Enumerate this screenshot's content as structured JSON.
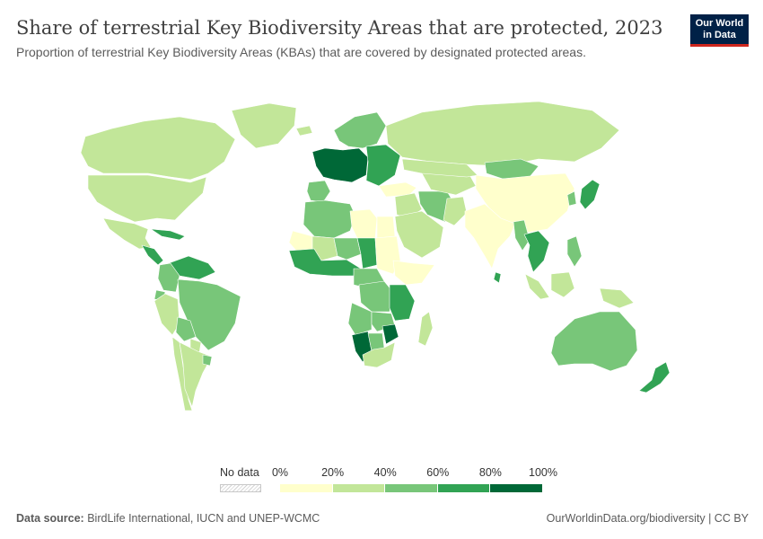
{
  "header": {
    "title": "Share of terrestrial Key Biodiversity Areas that are protected, 2023",
    "subtitle": "Proportion of terrestrial Key Biodiversity Areas (KBAs) that are covered by designated protected areas."
  },
  "logo": {
    "line1": "Our World",
    "line2": "in Data",
    "bg": "#002147",
    "accent": "#ce261e"
  },
  "legend": {
    "no_data_label": "No data",
    "ticks": [
      "0%",
      "20%",
      "40%",
      "60%",
      "80%",
      "100%"
    ],
    "bins": [
      {
        "from": 0,
        "to": 20,
        "color": "#ffffcc"
      },
      {
        "from": 20,
        "to": 40,
        "color": "#c2e699"
      },
      {
        "from": 40,
        "to": 60,
        "color": "#78c679"
      },
      {
        "from": 60,
        "to": 80,
        "color": "#31a354"
      },
      {
        "from": 80,
        "to": 100,
        "color": "#006837"
      }
    ],
    "no_data_color": "#e0e0e0"
  },
  "footer": {
    "source_label": "Data source:",
    "source_text": "BirdLife International, IUCN and UNEP-WCMC",
    "right_text": "OurWorldinData.org/biodiversity | CC BY"
  },
  "regions": [
    {
      "name": "Canada",
      "color": "#c2e699"
    },
    {
      "name": "Greenland",
      "color": "#c2e699"
    },
    {
      "name": "United States",
      "color": "#c2e699"
    },
    {
      "name": "Mexico",
      "color": "#c2e699"
    },
    {
      "name": "Central America",
      "color": "#31a354"
    },
    {
      "name": "Caribbean",
      "color": "#31a354"
    },
    {
      "name": "Venezuela and Guianas",
      "color": "#31a354"
    },
    {
      "name": "Colombia",
      "color": "#78c679"
    },
    {
      "name": "Ecuador",
      "color": "#78c679"
    },
    {
      "name": "Peru",
      "color": "#c2e699"
    },
    {
      "name": "Brazil",
      "color": "#78c679"
    },
    {
      "name": "Bolivia",
      "color": "#78c679"
    },
    {
      "name": "Paraguay",
      "color": "#c2e699"
    },
    {
      "name": "Chile",
      "color": "#c2e699"
    },
    {
      "name": "Argentina",
      "color": "#c2e699"
    },
    {
      "name": "Uruguay",
      "color": "#78c679"
    },
    {
      "name": "Iceland",
      "color": "#c2e699"
    },
    {
      "name": "Western Europe",
      "color": "#006837"
    },
    {
      "name": "Iberia",
      "color": "#78c679"
    },
    {
      "name": "Scandinavia",
      "color": "#78c679"
    },
    {
      "name": "Eastern Europe",
      "color": "#31a354"
    },
    {
      "name": "Russia",
      "color": "#c2e699"
    },
    {
      "name": "North Africa west",
      "color": "#78c679"
    },
    {
      "name": "Libya",
      "color": "#ffffcc"
    },
    {
      "name": "Egypt",
      "color": "#ffffcc"
    },
    {
      "name": "Mauritania",
      "color": "#ffffcc"
    },
    {
      "name": "Mali",
      "color": "#c2e699"
    },
    {
      "name": "Niger",
      "color": "#78c679"
    },
    {
      "name": "Chad",
      "color": "#31a354"
    },
    {
      "name": "Sudan",
      "color": "#ffffcc"
    },
    {
      "name": "West Africa",
      "color": "#31a354"
    },
    {
      "name": "Central Africa",
      "color": "#78c679"
    },
    {
      "name": "DR Congo",
      "color": "#78c679"
    },
    {
      "name": "Horn of Africa",
      "color": "#ffffcc"
    },
    {
      "name": "East Africa",
      "color": "#31a354"
    },
    {
      "name": "Angola",
      "color": "#78c679"
    },
    {
      "name": "Zambia",
      "color": "#78c679"
    },
    {
      "name": "Namibia",
      "color": "#006837"
    },
    {
      "name": "Botswana",
      "color": "#78c679"
    },
    {
      "name": "Zimbabwe",
      "color": "#006837"
    },
    {
      "name": "South Africa",
      "color": "#c2e699"
    },
    {
      "name": "Madagascar",
      "color": "#c2e699"
    },
    {
      "name": "Turkey",
      "color": "#ffffcc"
    },
    {
      "name": "Middle East",
      "color": "#c2e699"
    },
    {
      "name": "Arabia",
      "color": "#c2e699"
    },
    {
      "name": "Iran",
      "color": "#78c679"
    },
    {
      "name": "Central Asia",
      "color": "#c2e699"
    },
    {
      "name": "Kazakhstan",
      "color": "#c2e699"
    },
    {
      "name": "Mongolia",
      "color": "#78c679"
    },
    {
      "name": "China",
      "color": "#ffffcc"
    },
    {
      "name": "Pakistan",
      "color": "#c2e699"
    },
    {
      "name": "India",
      "color": "#ffffcc"
    },
    {
      "name": "Myanmar",
      "color": "#78c679"
    },
    {
      "name": "Thailand and Indochina",
      "color": "#31a354"
    },
    {
      "name": "Japan",
      "color": "#31a354"
    },
    {
      "name": "Korea",
      "color": "#78c679"
    },
    {
      "name": "Philippines",
      "color": "#78c679"
    },
    {
      "name": "Sumatra",
      "color": "#c2e699"
    },
    {
      "name": "Borneo",
      "color": "#c2e699"
    },
    {
      "name": "Papua",
      "color": "#c2e699"
    },
    {
      "name": "Australia",
      "color": "#78c679"
    },
    {
      "name": "New Zealand",
      "color": "#31a354"
    },
    {
      "name": "Sri Lanka",
      "color": "#31a354"
    }
  ]
}
